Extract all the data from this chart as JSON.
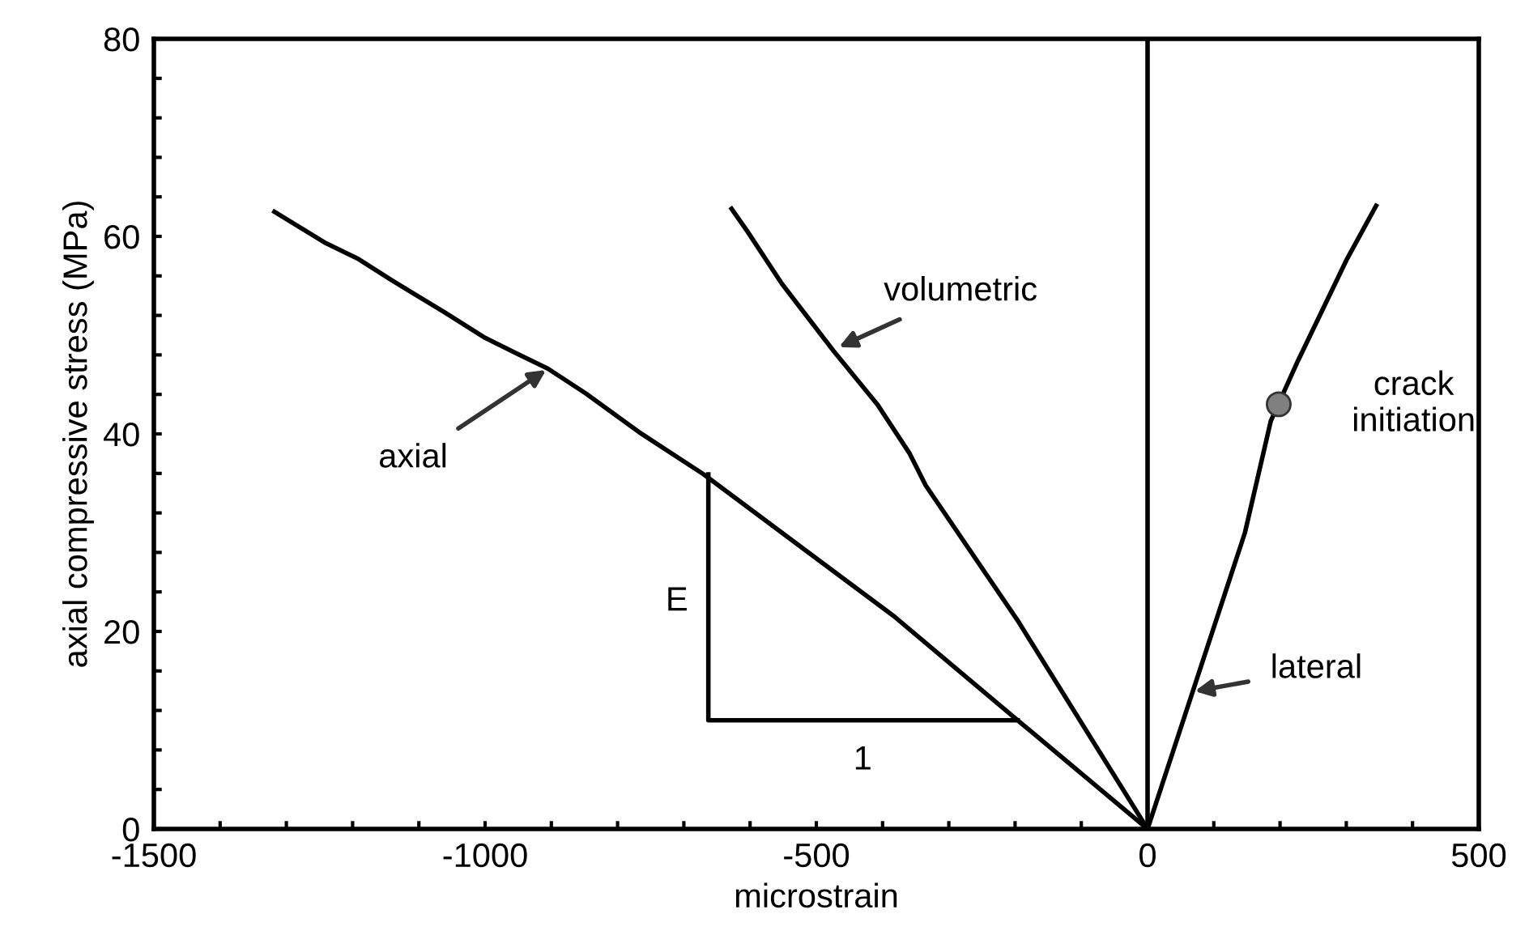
{
  "chart_data": {
    "type": "line",
    "xlabel": "microstrain",
    "ylabel": "axial compressive stress (MPa)",
    "xlim": [
      -1500,
      500
    ],
    "ylim": [
      0,
      80
    ],
    "xticks": [
      -1500,
      {
        "value": -1400,
        "label": null
      },
      {
        "value": -1300,
        "label": null
      },
      {
        "value": -1200,
        "label": null
      },
      {
        "value": -1100,
        "label": null
      },
      -1000,
      {
        "value": -900,
        "label": null
      },
      {
        "value": -800,
        "label": null
      },
      {
        "value": -700,
        "label": null
      },
      {
        "value": -600,
        "label": null
      },
      -500,
      {
        "value": -400,
        "label": null
      },
      {
        "value": -300,
        "label": null
      },
      {
        "value": -200,
        "label": null
      },
      {
        "value": -100,
        "label": null
      },
      0,
      {
        "value": 100,
        "label": null
      },
      {
        "value": 200,
        "label": null
      },
      {
        "value": 300,
        "label": null
      },
      {
        "value": 400,
        "label": null
      },
      500
    ],
    "yticks": [
      0,
      {
        "value": 4,
        "label": null
      },
      {
        "value": 8,
        "label": null
      },
      {
        "value": 12,
        "label": null
      },
      {
        "value": 16,
        "label": null
      },
      20,
      {
        "value": 24,
        "label": null
      },
      {
        "value": 28,
        "label": null
      },
      {
        "value": 32,
        "label": null
      },
      {
        "value": 36,
        "label": null
      },
      40,
      {
        "value": 44,
        "label": null
      },
      {
        "value": 48,
        "label": null
      },
      {
        "value": 52,
        "label": null
      },
      {
        "value": 56,
        "label": null
      },
      60,
      {
        "value": 64,
        "label": null
      },
      {
        "value": 68,
        "label": null
      },
      {
        "value": 72,
        "label": null
      },
      {
        "value": 76,
        "label": null
      },
      80
    ],
    "grid": false,
    "legend": false,
    "series": [
      {
        "color": "#000000",
        "x": [
          -1318,
          -1240,
          -1191,
          -1142,
          -1061,
          -1002,
          -954,
          -905,
          -848,
          -768,
          -670,
          -384,
          -196,
          0
        ],
        "values": [
          62.5,
          59.3,
          57.7,
          55.6,
          52.3,
          49.8,
          48.2,
          46.6,
          44.1,
          40.2,
          35.9,
          21.6,
          11.0,
          0
        ]
      },
      {
        "color": "#000000",
        "x": [
          -628,
          -604,
          -552,
          -474,
          -408,
          -359,
          -335,
          -196,
          0
        ],
        "values": [
          62.8,
          60.5,
          55.2,
          48.4,
          43.0,
          38.0,
          34.8,
          21.1,
          0
        ]
      },
      {
        "color": "#000000",
        "x": [
          0,
          147,
          186,
          227,
          301,
          345
        ],
        "values": [
          0,
          30,
          41.3,
          47.4,
          57.7,
          63.1
        ]
      },
      {
        "color": "#000000",
        "x": [
          -663,
          -663,
          -196
        ],
        "values": [
          35.9,
          11,
          11
        ]
      },
      {
        "type": "scatter",
        "color": "#808080",
        "marker": "circle",
        "x": [
          198
        ],
        "values": [
          43
        ]
      }
    ],
    "ref_lines": [
      {
        "axis": "x",
        "value": 0,
        "color": "#000000"
      }
    ],
    "annotations": [
      {
        "text": "axial",
        "x": -905,
        "y": 46.6
      },
      {
        "text": "volumetric",
        "x": -469,
        "y": 48.7
      },
      {
        "text": "lateral",
        "x": 68,
        "y": 13.9
      },
      {
        "text": "crack\ninitiation",
        "x": 198,
        "y": 43
      },
      {
        "text": "E",
        "x": -663,
        "y": 23
      },
      {
        "text": "1",
        "x": -430,
        "y": 11
      }
    ]
  }
}
